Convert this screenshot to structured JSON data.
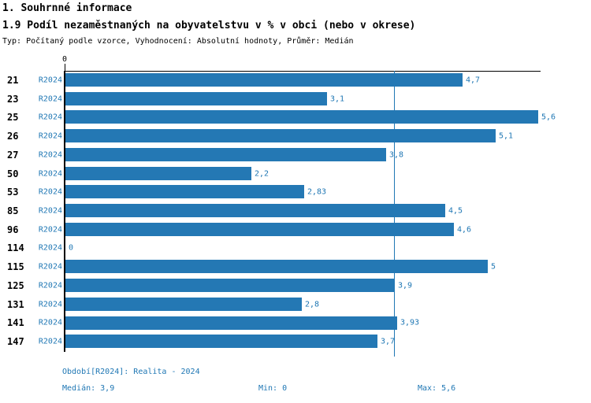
{
  "header": {
    "section_title": "1. Souhrnné informace",
    "chart_title": "1.9 Podíl nezaměstnaných na obyvatelstvu v % v obci (nebo v okrese)",
    "meta": "Typ: Počítaný podle vzorce, Vyhodnocení: Absolutní hodnoty, Průměr: Medián"
  },
  "chart_data": {
    "type": "bar",
    "orientation": "horizontal",
    "categories": [
      "21",
      "23",
      "25",
      "26",
      "27",
      "50",
      "53",
      "85",
      "96",
      "114",
      "115",
      "125",
      "131",
      "141",
      "147"
    ],
    "series": [
      {
        "name": "R2024",
        "values": [
          4.7,
          3.1,
          5.6,
          5.1,
          3.8,
          2.2,
          2.83,
          4.5,
          4.6,
          0,
          5,
          3.9,
          2.8,
          3.93,
          3.7
        ],
        "value_labels": [
          "4,7",
          "3,1",
          "5,6",
          "5,1",
          "3,8",
          "2,2",
          "2,83",
          "4,5",
          "4,6",
          "0",
          "5",
          "3,9",
          "2,8",
          "3,93",
          "3,7"
        ]
      }
    ],
    "xlim": [
      0,
      5.6
    ],
    "axis_zero_label": "0",
    "median_line_value": 3.9,
    "grid": false,
    "legend_position": "none",
    "bar_color": "#2478b4",
    "accent_text_color": "#1f77b4",
    "axis_color": "#000000"
  },
  "footer": {
    "period": "Období[R2024]: Realita - 2024",
    "median": "Medián: 3,9",
    "min": "Min: 0",
    "max": "Max: 5,6"
  }
}
